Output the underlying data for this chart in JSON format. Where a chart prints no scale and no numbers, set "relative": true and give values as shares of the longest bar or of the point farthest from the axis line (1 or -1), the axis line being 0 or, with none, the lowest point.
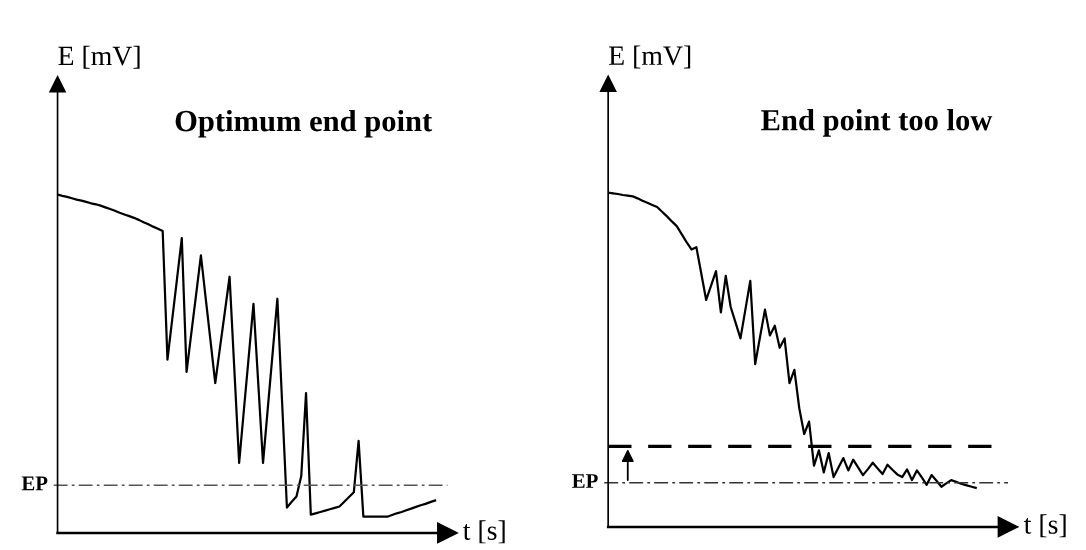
{
  "chart_data": [
    {
      "type": "line",
      "title": "Optimum end point",
      "xlabel": "t [s]",
      "ylabel": "E [mV]",
      "relative": true,
      "marker": "none",
      "line_style": "solid",
      "categories": [
        null,
        null,
        null,
        null,
        null,
        null,
        null,
        null,
        null,
        null,
        null,
        null,
        null,
        null,
        null,
        null,
        null,
        null,
        null,
        null,
        null,
        null,
        null,
        null,
        null,
        null,
        null,
        null,
        null,
        null,
        null,
        null,
        null,
        null,
        null,
        null,
        null,
        null,
        null,
        null,
        null,
        null,
        null,
        null,
        null,
        null,
        null,
        null,
        null,
        null,
        null,
        null,
        null,
        null,
        null,
        null,
        null,
        null,
        null,
        null,
        null,
        null,
        null,
        null,
        null,
        null,
        null,
        null,
        null,
        null,
        null,
        null,
        null,
        null,
        null,
        null,
        null,
        null,
        null,
        null,
        null
      ],
      "series": [
        {
          "color": "#000000",
          "values": [
            1.0,
            0.996,
            0.993,
            0.989,
            0.985,
            0.982,
            0.978,
            0.974,
            0.971,
            0.967,
            0.962,
            0.957,
            0.952,
            0.946,
            0.941,
            0.936,
            0.931,
            0.925,
            0.918,
            0.912,
            0.905,
            0.899,
            0.892,
            0.512,
            0.632,
            0.751,
            0.871,
            0.476,
            0.591,
            0.705,
            0.82,
            0.694,
            0.569,
            0.443,
            0.548,
            0.652,
            0.757,
            0.482,
            0.207,
            0.364,
            0.52,
            0.677,
            0.442,
            0.207,
            0.369,
            0.53,
            0.692,
            0.384,
            0.075,
            0.092,
            0.108,
            0.168,
            0.413,
            0.054,
            0.058,
            0.062,
            0.066,
            0.07,
            0.074,
            0.078,
            0.092,
            0.106,
            0.12,
            0.272,
            0.048,
            0.048,
            0.048,
            0.048,
            0.048,
            0.048,
            0.053,
            0.058,
            0.062,
            0.067,
            0.072,
            0.077,
            0.082,
            0.086,
            0.091,
            0.096,
            null
          ]
        }
      ],
      "ref_lines": [
        {
          "axis": "y",
          "value": 0.141,
          "label": "EP",
          "color": "#555555",
          "line_style": "dashdot"
        }
      ]
    },
    {
      "type": "line",
      "title": "End point too low",
      "xlabel": "t [s]",
      "ylabel": "E [mV]",
      "relative": true,
      "marker": "none",
      "line_style": "solid",
      "categories": [
        null,
        null,
        null,
        null,
        null,
        null,
        null,
        null,
        null,
        null,
        null,
        null,
        null,
        null,
        null,
        null,
        null,
        null,
        null,
        null,
        null,
        null,
        null,
        null,
        null,
        null,
        null,
        null,
        null,
        null,
        null,
        null,
        null,
        null,
        null,
        null,
        null,
        null,
        null,
        null,
        null,
        null,
        null,
        null,
        null,
        null,
        null,
        null,
        null,
        null,
        null,
        null,
        null,
        null,
        null,
        null,
        null,
        null,
        null,
        null,
        null,
        null,
        null,
        null,
        null,
        null,
        null,
        null,
        null,
        null,
        null,
        null,
        null,
        null,
        null,
        null,
        null,
        null,
        null,
        null,
        null
      ],
      "series": [
        {
          "color": "#000000",
          "values": [
            1.0,
            0.998,
            0.996,
            0.993,
            0.991,
            0.989,
            0.983,
            0.976,
            0.97,
            0.963,
            0.957,
            0.943,
            0.929,
            0.914,
            0.9,
            0.876,
            0.852,
            0.83,
            0.837,
            0.758,
            0.679,
            0.722,
            0.765,
            0.642,
            0.751,
            0.658,
            0.611,
            0.564,
            0.65,
            0.736,
            0.487,
            0.569,
            0.65,
            0.573,
            0.602,
            0.536,
            0.564,
            0.43,
            0.47,
            0.355,
            0.278,
            0.315,
            0.183,
            0.229,
            0.163,
            0.221,
            0.149,
            0.178,
            0.206,
            0.169,
            0.201,
            0.178,
            0.155,
            0.173,
            0.192,
            0.175,
            0.158,
            0.186,
            0.171,
            0.157,
            0.149,
            0.172,
            0.14,
            0.169,
            0.148,
            0.126,
            0.155,
            0.138,
            0.12,
            0.13,
            0.14,
            0.135,
            0.129,
            0.125,
            0.121,
            0.117,
            null,
            null,
            null,
            null,
            null
          ]
        }
      ],
      "ref_lines": [
        {
          "axis": "y",
          "value": 0.241,
          "label": null,
          "color": "#000000",
          "line_style": "dashed"
        },
        {
          "axis": "y",
          "value": 0.132,
          "label": "EP",
          "color": "#333333",
          "line_style": "dashdot"
        }
      ]
    }
  ]
}
